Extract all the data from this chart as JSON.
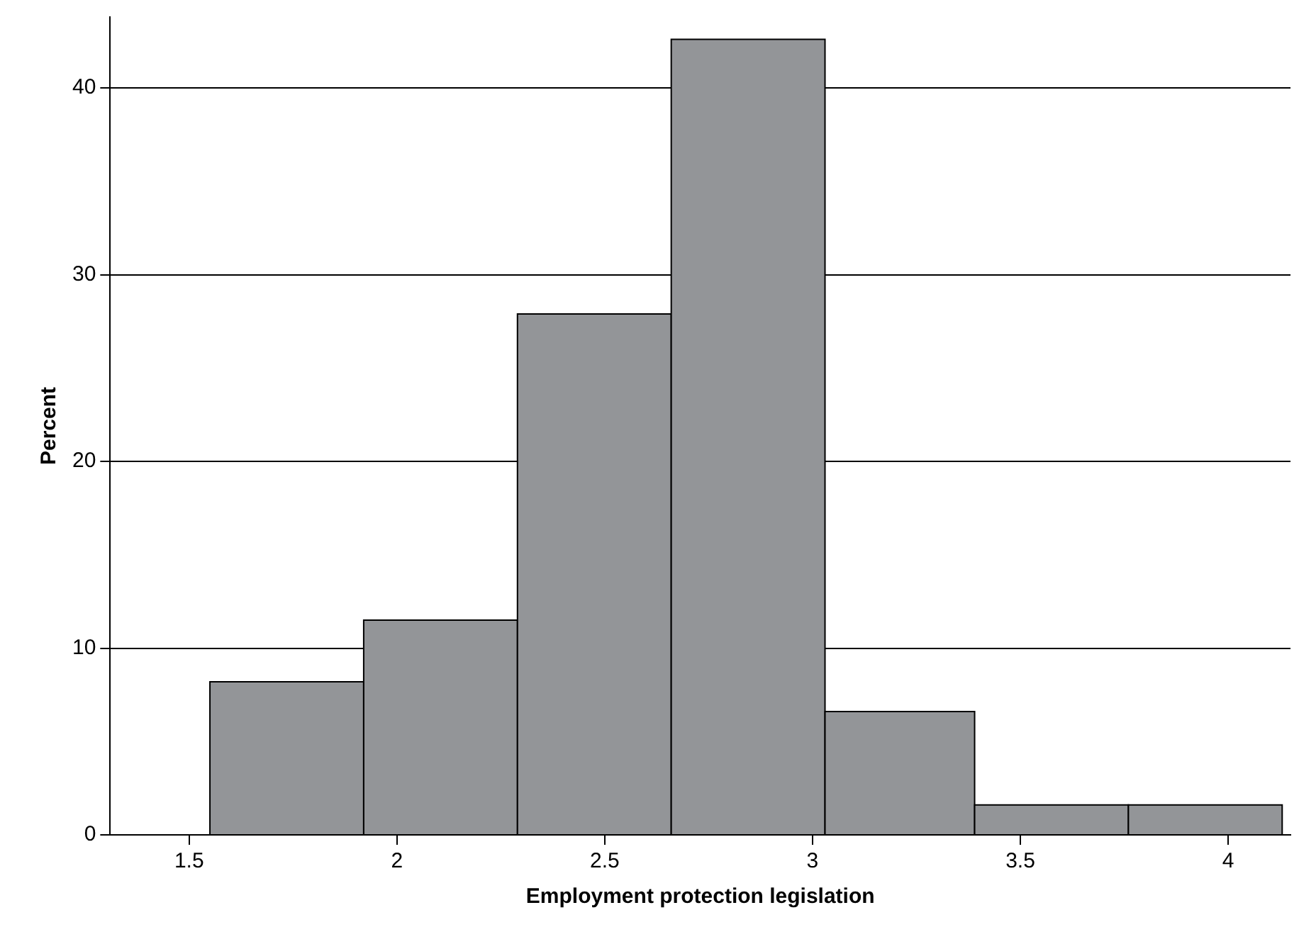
{
  "chart_data": {
    "type": "histogram",
    "xlabel": "Employment protection legislation",
    "ylabel": "Percent",
    "bins": [
      1.55,
      1.92,
      2.29,
      2.66,
      3.03,
      3.39,
      3.76,
      4.13
    ],
    "values": [
      8.2,
      11.5,
      27.9,
      42.6,
      6.6,
      1.6,
      1.6
    ],
    "color": "#939598",
    "xlim": [
      1.31,
      4.15
    ],
    "xticks": [
      {
        "value": 1.5,
        "label": "1.5"
      },
      2,
      {
        "value": 2.5,
        "label": "2.5"
      },
      3,
      {
        "value": 3.5,
        "label": "3.5"
      },
      4
    ],
    "ylim": [
      0,
      43.8
    ],
    "yticks": [
      0,
      10,
      20,
      30,
      40
    ],
    "grid": "y",
    "legend": false
  }
}
